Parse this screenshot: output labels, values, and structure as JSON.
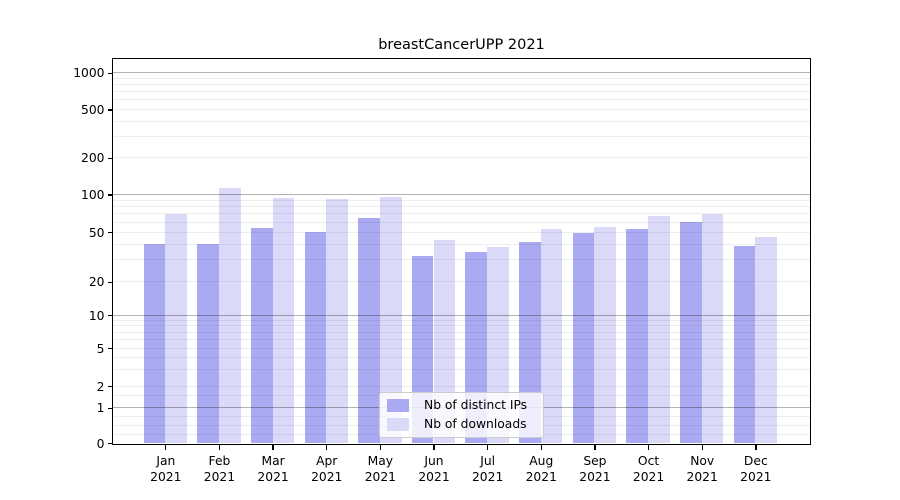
{
  "title": "breastCancerUPP 2021",
  "legend": {
    "items": [
      {
        "label": "Nb of distinct IPs",
        "color": "#aaaaf2"
      },
      {
        "label": "Nb of downloads",
        "color": "#dadaf8"
      }
    ]
  },
  "x_axis": {
    "months": [
      "Jan",
      "Feb",
      "Mar",
      "Apr",
      "May",
      "Jun",
      "Jul",
      "Aug",
      "Sep",
      "Oct",
      "Nov",
      "Dec"
    ],
    "year": "2021"
  },
  "y_axis": {
    "tick_labels": [
      "0",
      "1",
      "2",
      "5",
      "10",
      "20",
      "50",
      "100",
      "200",
      "500",
      "1000"
    ]
  },
  "chart_data": {
    "type": "bar",
    "title": "breastCancerUPP 2021",
    "categories": [
      "Jan 2021",
      "Feb 2021",
      "Mar 2021",
      "Apr 2021",
      "May 2021",
      "Jun 2021",
      "Jul 2021",
      "Aug 2021",
      "Sep 2021",
      "Oct 2021",
      "Nov 2021",
      "Dec 2021"
    ],
    "series": [
      {
        "name": "Nb of distinct IPs",
        "key": "distinct-ips",
        "color": "#aaaaf2",
        "values": [
          40,
          40,
          54,
          50,
          65,
          32,
          35,
          42,
          49,
          53,
          60,
          39
        ]
      },
      {
        "name": "Nb of downloads",
        "key": "downloads",
        "color": "#dadaf8",
        "values": [
          70,
          113,
          94,
          92,
          96,
          43,
          38,
          53,
          55,
          67,
          70,
          46
        ]
      }
    ],
    "yticks": [
      0,
      1,
      2,
      5,
      10,
      20,
      50,
      100,
      200,
      500,
      1000
    ],
    "scale": "symlog-like (log above 1, linear near 0)",
    "ylim": [
      0,
      1300
    ],
    "grid": true,
    "legend_position": "lower center"
  }
}
